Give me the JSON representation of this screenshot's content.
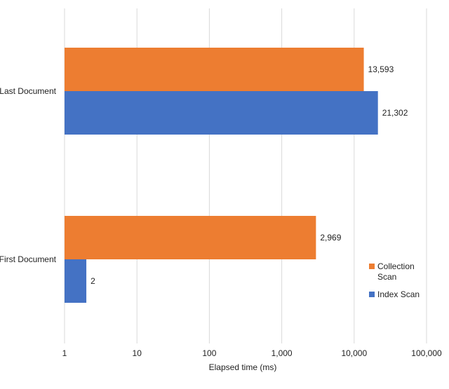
{
  "chart_data": {
    "type": "bar",
    "orientation": "horizontal",
    "title": "",
    "xlabel": "Elapsed time (ms)",
    "ylabel": "",
    "x_scale": "log",
    "xlim": [
      1,
      100000
    ],
    "x_ticks": [
      1,
      10,
      100,
      1000,
      10000,
      100000
    ],
    "x_tick_labels": [
      "1",
      "10",
      "100",
      "1,000",
      "10,000",
      "100,000"
    ],
    "categories": [
      "Last Document",
      "First Document"
    ],
    "series": [
      {
        "name": "Collection Scan",
        "color": "#ED7D31",
        "values": [
          13593,
          2969
        ],
        "labels": [
          "13,593",
          "2,969"
        ]
      },
      {
        "name": "Index Scan",
        "color": "#4472C4",
        "values": [
          21302,
          2
        ],
        "labels": [
          "21,302",
          "2"
        ]
      }
    ],
    "grid": true,
    "legend": {
      "position": "right",
      "entries": [
        "Collection Scan",
        "Index Scan"
      ]
    }
  }
}
